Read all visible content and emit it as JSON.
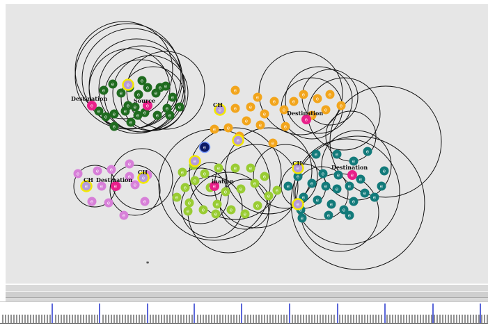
{
  "colors": {
    "background": "#e6e6e6",
    "circle_stroke": "#111111",
    "cluster_green": "#1f6b1f",
    "cluster_orange": "#f2a51c",
    "cluster_lightgreen": "#99cc33",
    "cluster_teal": "#127a7a",
    "cluster_violet": "#d77fd8",
    "highlight_yellow": "#f4e900",
    "node_pink": "#e8208a",
    "node_navy": "#0d1a66",
    "ruler_major": "#2233cc",
    "ruler_minor": "#222222"
  },
  "labels": {
    "dest_green": "Destination",
    "source": "Source",
    "ch_orange": "CH",
    "dest_orange": "Destination",
    "ch_violet_left": "CH",
    "ch_violet_right": "CH",
    "dest_violet": "Destination",
    "dest_lightgreen": "ination",
    "ch_teal": "CH",
    "dest_teal": "Destination",
    "stray_mark": "*"
  },
  "node_glyph": "e"
}
